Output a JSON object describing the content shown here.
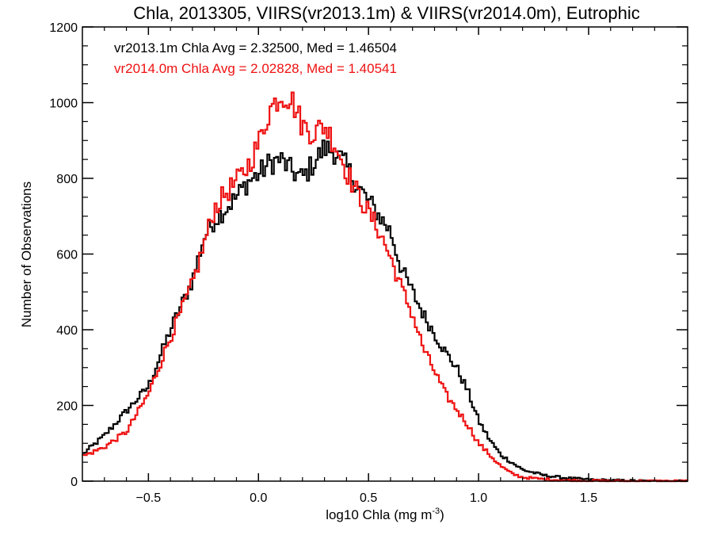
{
  "chart_data": {
    "type": "step",
    "title": "Chla, 2013305, VIIRS(vr2013.1m) & VIIRS(vr2014.0m), Eutrophic",
    "xlabel_prefix": "log10 Chla (mg m",
    "xlabel_sup": "-3",
    "xlabel_suffix": ")",
    "ylabel": "Number of Observations",
    "xlim": [
      -0.8,
      1.95
    ],
    "ylim": [
      0,
      1200
    ],
    "x_ticks": [
      -0.5,
      0.0,
      0.5,
      1.0,
      1.5
    ],
    "x_tick_labels": [
      "−0.5",
      "0.0",
      "0.5",
      "1.0",
      "1.5"
    ],
    "y_ticks": [
      0,
      200,
      400,
      600,
      800,
      1000,
      1200
    ],
    "y_tick_labels": [
      "0",
      "200",
      "400",
      "600",
      "800",
      "1000",
      "1200"
    ],
    "grid": false,
    "legend_position": "top-left",
    "series": [
      {
        "label": "vr2013.1m Chla Avg = 2.32500, Med = 1.46504",
        "color": "#000000",
        "points": [
          [
            -0.8,
            70
          ],
          [
            -0.7,
            120
          ],
          [
            -0.6,
            185
          ],
          [
            -0.5,
            250
          ],
          [
            -0.4,
            400
          ],
          [
            -0.3,
            530
          ],
          [
            -0.25,
            640
          ],
          [
            -0.2,
            690
          ],
          [
            -0.15,
            720
          ],
          [
            -0.1,
            750
          ],
          [
            -0.05,
            790
          ],
          [
            0.0,
            810
          ],
          [
            0.05,
            840
          ],
          [
            0.1,
            850
          ],
          [
            0.15,
            820
          ],
          [
            0.2,
            800
          ],
          [
            0.25,
            840
          ],
          [
            0.3,
            880
          ],
          [
            0.35,
            870
          ],
          [
            0.4,
            830
          ],
          [
            0.45,
            780
          ],
          [
            0.5,
            740
          ],
          [
            0.55,
            700
          ],
          [
            0.6,
            660
          ],
          [
            0.65,
            560
          ],
          [
            0.7,
            500
          ],
          [
            0.75,
            440
          ],
          [
            0.8,
            390
          ],
          [
            0.85,
            340
          ],
          [
            0.9,
            300
          ],
          [
            0.95,
            240
          ],
          [
            1.0,
            160
          ],
          [
            1.05,
            110
          ],
          [
            1.1,
            70
          ],
          [
            1.15,
            50
          ],
          [
            1.2,
            30
          ],
          [
            1.3,
            15
          ],
          [
            1.4,
            8
          ],
          [
            1.5,
            4
          ],
          [
            1.6,
            2
          ],
          [
            1.7,
            1
          ],
          [
            1.8,
            0
          ],
          [
            1.95,
            0
          ]
        ]
      },
      {
        "label": "vr2014.0m Chla Avg = 2.02828, Med = 1.40541",
        "color": "#ee1111",
        "points": [
          [
            -0.8,
            65
          ],
          [
            -0.7,
            90
          ],
          [
            -0.6,
            130
          ],
          [
            -0.5,
            230
          ],
          [
            -0.4,
            380
          ],
          [
            -0.3,
            520
          ],
          [
            -0.25,
            620
          ],
          [
            -0.2,
            720
          ],
          [
            -0.15,
            760
          ],
          [
            -0.1,
            790
          ],
          [
            -0.05,
            830
          ],
          [
            0.0,
            890
          ],
          [
            0.05,
            980
          ],
          [
            0.1,
            1020
          ],
          [
            0.15,
            1010
          ],
          [
            0.2,
            940
          ],
          [
            0.25,
            920
          ],
          [
            0.3,
            940
          ],
          [
            0.35,
            890
          ],
          [
            0.4,
            820
          ],
          [
            0.45,
            760
          ],
          [
            0.5,
            710
          ],
          [
            0.55,
            660
          ],
          [
            0.6,
            590
          ],
          [
            0.65,
            510
          ],
          [
            0.7,
            440
          ],
          [
            0.75,
            350
          ],
          [
            0.8,
            290
          ],
          [
            0.85,
            230
          ],
          [
            0.9,
            190
          ],
          [
            0.95,
            150
          ],
          [
            1.0,
            100
          ],
          [
            1.05,
            70
          ],
          [
            1.1,
            40
          ],
          [
            1.15,
            20
          ],
          [
            1.2,
            10
          ],
          [
            1.3,
            5
          ],
          [
            1.4,
            2
          ],
          [
            1.5,
            1
          ],
          [
            1.6,
            0
          ],
          [
            1.95,
            0
          ]
        ]
      }
    ]
  }
}
